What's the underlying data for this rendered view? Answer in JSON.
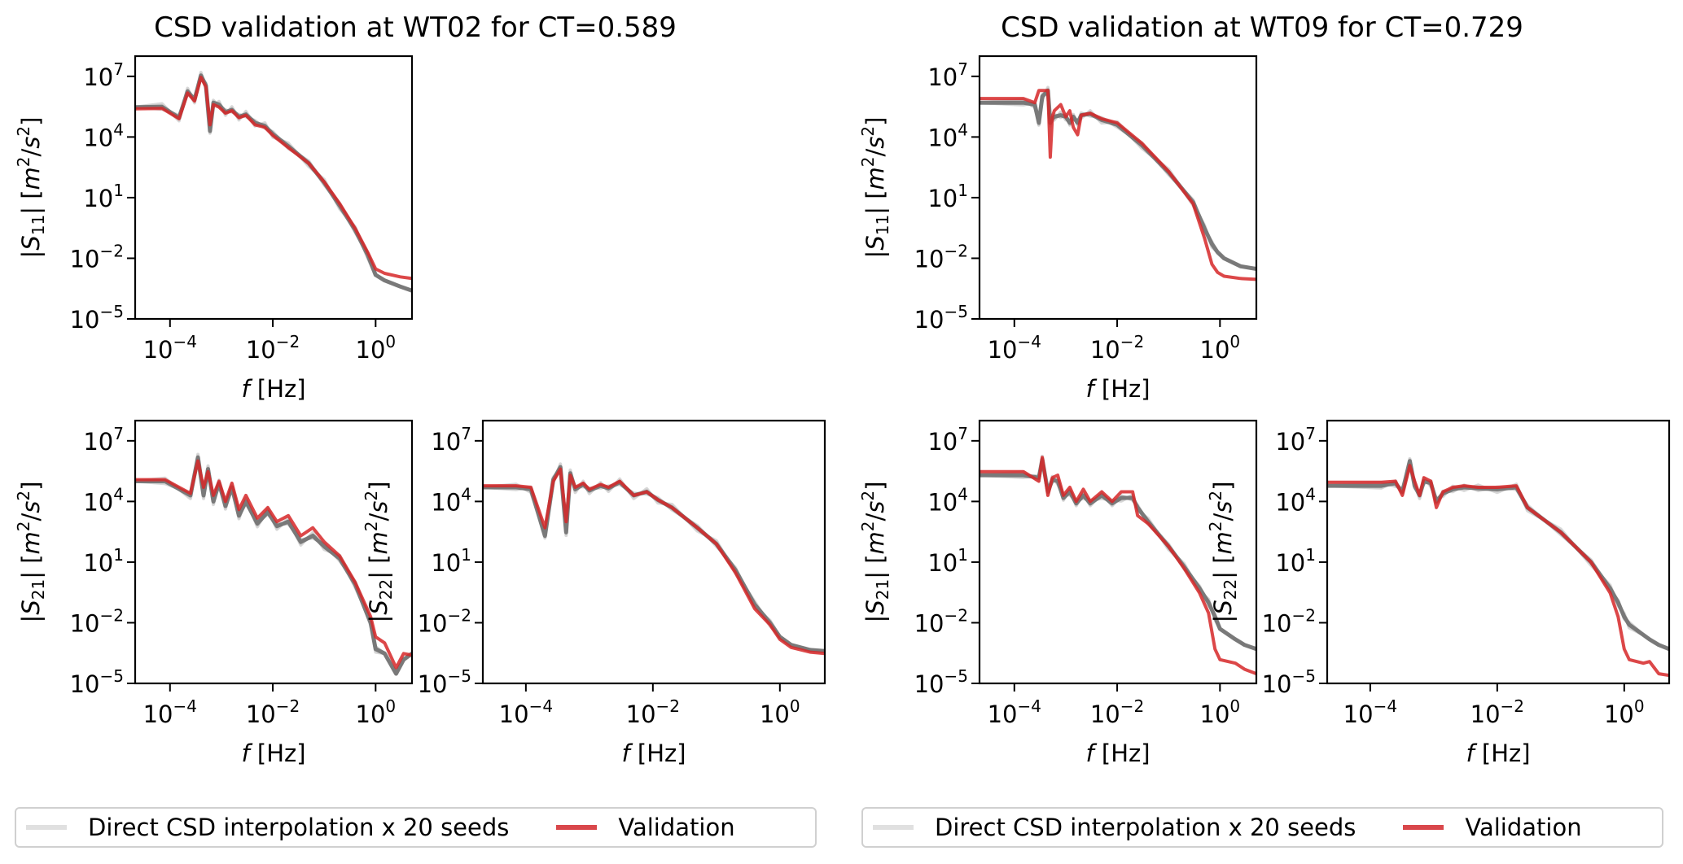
{
  "figure": {
    "legend_entries": [
      {
        "label": "Direct CSD interpolation x 20 seeds",
        "color": "#e0e0e0"
      },
      {
        "label": "Validation",
        "color": "#d62728"
      }
    ]
  },
  "chart_data": [
    {
      "type": "line",
      "group_title": "CSD validation at WT02 for CT=0.589",
      "panel": "S11",
      "ylabel": "|S11| [m²/s²]",
      "xlabel": "f [Hz]",
      "xscale": "log",
      "yscale": "log",
      "xlim": [
        2.1e-05,
        5.1
      ],
      "ylim": [
        1e-05,
        100000000.0
      ],
      "xticks": [
        "10⁻⁴",
        "10⁻²",
        "10⁰"
      ],
      "yticks": [
        "10⁷",
        "10⁴",
        "10¹",
        "10⁻²",
        "10⁻⁵"
      ],
      "x": [
        2.1e-05,
        7e-05,
        0.00015,
        0.00022,
        0.0003,
        0.0004,
        0.0005,
        0.0006,
        0.0007,
        0.0009,
        0.0012,
        0.0016,
        0.0022,
        0.003,
        0.0045,
        0.007,
        0.01,
        0.02,
        0.05,
        0.1,
        0.2,
        0.4,
        0.7,
        1.0,
        1.5,
        3.0,
        5.1
      ],
      "series": [
        {
          "name": "Validation",
          "y": [
            250000.0,
            260000.0,
            80000.0,
            1500000.0,
            600000.0,
            9000000.0,
            3000000.0,
            40000.0,
            400000.0,
            300000.0,
            150000.0,
            200000.0,
            90000.0,
            120000.0,
            40000.0,
            30000.0,
            12000.0,
            3000.0,
            500.0,
            60,
            5,
            0.3,
            0.02,
            0.003,
            0.0018,
            0.0012,
            0.001
          ]
        },
        {
          "name": "Direct CSD interpolation x 20 seeds",
          "y": [
            300000.0,
            310000.0,
            90000.0,
            1800000.0,
            700000.0,
            11000000.0,
            3500000.0,
            20000.0,
            500000.0,
            400000.0,
            170000.0,
            220000.0,
            100000.0,
            130000.0,
            50000.0,
            35000.0,
            14000.0,
            3500.0,
            500.0,
            55,
            4,
            0.25,
            0.015,
            0.0015,
            0.0008,
            0.0004,
            0.00025
          ]
        }
      ]
    },
    {
      "type": "line",
      "group_title": "CSD validation at WT02 for CT=0.589",
      "panel": "S21",
      "ylabel": "|S21| [m²/s²]",
      "xlabel": "f [Hz]",
      "xscale": "log",
      "yscale": "log",
      "xlim": [
        2.1e-05,
        5.1
      ],
      "ylim": [
        1e-05,
        100000000.0
      ],
      "xticks": [
        "10⁻⁴",
        "10⁻²",
        "10⁰"
      ],
      "yticks": [
        "10⁷",
        "10⁴",
        "10¹",
        "10⁻²",
        "10⁻⁵"
      ],
      "x": [
        2.1e-05,
        8e-05,
        0.00025,
        0.00035,
        0.00045,
        0.00055,
        0.0007,
        0.0009,
        0.0012,
        0.0016,
        0.0022,
        0.003,
        0.005,
        0.008,
        0.012,
        0.02,
        0.035,
        0.06,
        0.1,
        0.2,
        0.4,
        0.8,
        1.0,
        1.5,
        2.5,
        3.5,
        5.1
      ],
      "series": [
        {
          "name": "Validation",
          "y": [
            120000.0,
            120000.0,
            25000.0,
            1000000.0,
            50000.0,
            300000.0,
            20000.0,
            100000.0,
            10000.0,
            80000.0,
            4000.0,
            20000.0,
            1500.0,
            5000.0,
            1000.0,
            2000.0,
            200.0,
            500.0,
            100.0,
            20,
            1,
            0.02,
            0.002,
            0.001,
            6e-05,
            0.0003,
            0.00025
          ]
        },
        {
          "name": "Direct CSD interpolation x 20 seeds",
          "y": [
            100000.0,
            100000.0,
            20000.0,
            1500000.0,
            20000.0,
            400000.0,
            10000.0,
            80000.0,
            6000.0,
            50000.0,
            2000.0,
            10000.0,
            800.0,
            3000.0,
            600.0,
            1000.0,
            100.0,
            200.0,
            60,
            15,
            0.8,
            0.01,
            0.0005,
            0.0003,
            3e-05,
            0.00015,
            0.0003
          ]
        }
      ]
    },
    {
      "type": "line",
      "group_title": "CSD validation at WT02 for CT=0.589",
      "panel": "S22",
      "ylabel": "|S22| [m²/s²]",
      "xlabel": "f [Hz]",
      "xscale": "log",
      "yscale": "log",
      "xlim": [
        2.1e-05,
        5.1
      ],
      "ylim": [
        1e-05,
        100000000.0
      ],
      "xticks": [
        "10⁻⁴",
        "10⁻²",
        "10⁰"
      ],
      "yticks": [
        "10⁷",
        "10⁴",
        "10¹",
        "10⁻²",
        "10⁻⁵"
      ],
      "x": [
        2.1e-05,
        7e-05,
        0.00012,
        0.0002,
        0.00027,
        0.00035,
        0.00043,
        0.0005,
        0.0006,
        0.0008,
        0.001,
        0.0015,
        0.002,
        0.003,
        0.005,
        0.008,
        0.012,
        0.02,
        0.05,
        0.1,
        0.2,
        0.4,
        0.7,
        1.0,
        1.5,
        3.0,
        5.1
      ],
      "series": [
        {
          "name": "Validation",
          "y": [
            60000.0,
            60000.0,
            50000.0,
            500.0,
            100000.0,
            400000.0,
            1000.0,
            200000.0,
            50000.0,
            80000.0,
            40000.0,
            70000.0,
            50000.0,
            100000.0,
            20000.0,
            30000.0,
            12000.0,
            5000.0,
            500.0,
            80,
            3,
            0.05,
            0.008,
            0.0015,
            0.0006,
            0.00035,
            0.0003
          ]
        },
        {
          "name": "Direct CSD interpolation x 20 seeds",
          "y": [
            50000.0,
            50000.0,
            40000.0,
            200.0,
            120000.0,
            500000.0,
            300.0,
            250000.0,
            40000.0,
            70000.0,
            35000.0,
            60000.0,
            45000.0,
            90000.0,
            20000.0,
            30000.0,
            12000.0,
            5000.0,
            500.0,
            80,
            4,
            0.08,
            0.01,
            0.002,
            0.0008,
            0.00045,
            0.0004
          ]
        }
      ]
    },
    {
      "type": "line",
      "group_title": "CSD validation at WT09 for CT=0.729",
      "panel": "S11",
      "ylabel": "|S11| [m²/s²]",
      "xlabel": "f [Hz]",
      "xscale": "log",
      "yscale": "log",
      "xlim": [
        2.1e-05,
        5.1
      ],
      "ylim": [
        1e-05,
        100000000.0
      ],
      "xticks": [
        "10⁻⁴",
        "10⁻²",
        "10⁰"
      ],
      "yticks": [
        "10⁷",
        "10⁴",
        "10¹",
        "10⁻²",
        "10⁻⁵"
      ],
      "x": [
        2.1e-05,
        0.00015,
        0.00025,
        0.0003,
        0.00035,
        0.00045,
        0.0005,
        0.00055,
        0.0006,
        0.0008,
        0.001,
        0.0012,
        0.0014,
        0.0017,
        0.002,
        0.003,
        0.005,
        0.01,
        0.03,
        0.1,
        0.3,
        0.5,
        0.7,
        0.9,
        1.2,
        2.5,
        5.1
      ],
      "series": [
        {
          "name": "Validation",
          "y": [
            800000.0,
            800000.0,
            500000.0,
            2000000.0,
            2000000.0,
            2000000.0,
            1000.0,
            100000.0,
            200000.0,
            400000.0,
            100000.0,
            200000.0,
            30000.0,
            13000.0,
            120000.0,
            150000.0,
            80000.0,
            50000.0,
            5000.0,
            200.0,
            5,
            0.1,
            0.005,
            0.002,
            0.0013,
            0.001,
            0.0009
          ]
        },
        {
          "name": "Direct CSD interpolation x 20 seeds",
          "y": [
            500000.0,
            500000.0,
            400000.0,
            50000.0,
            1000000.0,
            2000000.0,
            50000.0,
            80000.0,
            100000.0,
            120000.0,
            100000.0,
            50000.0,
            100000.0,
            50000.0,
            120000.0,
            140000.0,
            70000.0,
            40000.0,
            4000.0,
            180.0,
            6,
            0.3,
            0.05,
            0.02,
            0.01,
            0.004,
            0.003
          ]
        }
      ]
    },
    {
      "type": "line",
      "group_title": "CSD validation at WT09 for CT=0.729",
      "panel": "S21",
      "ylabel": "|S21| [m²/s²]",
      "xlabel": "f [Hz]",
      "xscale": "log",
      "yscale": "log",
      "xlim": [
        2.1e-05,
        5.1
      ],
      "ylim": [
        1e-05,
        100000000.0
      ],
      "xticks": [
        "10⁻⁴",
        "10⁻²",
        "10⁰"
      ],
      "yticks": [
        "10⁷",
        "10⁴",
        "10¹",
        "10⁻²",
        "10⁻⁵"
      ],
      "x": [
        2.1e-05,
        0.00015,
        0.0003,
        0.00035,
        0.00045,
        0.00055,
        0.0007,
        0.0009,
        0.0012,
        0.0016,
        0.0022,
        0.003,
        0.005,
        0.008,
        0.012,
        0.02,
        0.025,
        0.04,
        0.1,
        0.2,
        0.4,
        0.6,
        0.8,
        1.0,
        2.0,
        3.0,
        5.1
      ],
      "series": [
        {
          "name": "Validation",
          "y": [
            300000.0,
            300000.0,
            100000.0,
            1500000.0,
            20000.0,
            150000.0,
            200000.0,
            20000.0,
            50000.0,
            10000.0,
            40000.0,
            10000.0,
            30000.0,
            10000.0,
            30000.0,
            30000.0,
            2000.0,
            800.0,
            60,
            5,
            0.3,
            0.03,
            0.0005,
            0.00015,
            0.0001,
            5e-05,
            3e-05
          ]
        },
        {
          "name": "Direct CSD interpolation x 20 seeds",
          "y": [
            200000.0,
            200000.0,
            150000.0,
            1200000.0,
            30000.0,
            120000.0,
            100000.0,
            15000.0,
            30000.0,
            8000.0,
            20000.0,
            8000.0,
            20000.0,
            8000.0,
            15000.0,
            15000.0,
            5000.0,
            1000.0,
            60,
            6,
            0.5,
            0.1,
            0.02,
            0.005,
            0.0015,
            0.0008,
            0.0005
          ]
        }
      ]
    },
    {
      "type": "line",
      "group_title": "CSD validation at WT09 for CT=0.729",
      "panel": "S22",
      "ylabel": "|S22| [m²/s²]",
      "xlabel": "f [Hz]",
      "xscale": "log",
      "yscale": "log",
      "xlim": [
        2.1e-05,
        5.1
      ],
      "ylim": [
        1e-05,
        100000000.0
      ],
      "xticks": [
        "10⁻⁴",
        "10⁻²",
        "10⁰"
      ],
      "yticks": [
        "10⁷",
        "10⁴",
        "10¹",
        "10⁻²",
        "10⁻⁵"
      ],
      "x": [
        2.1e-05,
        0.00015,
        0.00025,
        0.00032,
        0.00042,
        0.0005,
        0.0006,
        0.0007,
        0.0009,
        0.0011,
        0.0014,
        0.002,
        0.003,
        0.005,
        0.01,
        0.02,
        0.03,
        0.1,
        0.3,
        0.6,
        0.8,
        1.0,
        1.2,
        2.0,
        2.5,
        3.5,
        5.1
      ],
      "series": [
        {
          "name": "Validation",
          "y": [
            90000.0,
            90000.0,
            100000.0,
            20000.0,
            600000.0,
            100000.0,
            20000.0,
            150000.0,
            100000.0,
            5000.0,
            30000.0,
            50000.0,
            60000.0,
            50000.0,
            50000.0,
            60000.0,
            5000.0,
            300.0,
            10,
            0.3,
            0.02,
            0.0005,
            0.00015,
            0.0001,
            0.00012,
            3e-05,
            2.5e-05
          ]
        },
        {
          "name": "Direct CSD interpolation x 20 seeds",
          "y": [
            60000.0,
            60000.0,
            80000.0,
            30000.0,
            1000000.0,
            60000.0,
            20000.0,
            100000.0,
            80000.0,
            10000.0,
            25000.0,
            40000.0,
            50000.0,
            45000.0,
            40000.0,
            50000.0,
            5000.0,
            300.0,
            10,
            0.5,
            0.1,
            0.02,
            0.008,
            0.0025,
            0.0015,
            0.0008,
            0.0005
          ]
        }
      ]
    }
  ]
}
